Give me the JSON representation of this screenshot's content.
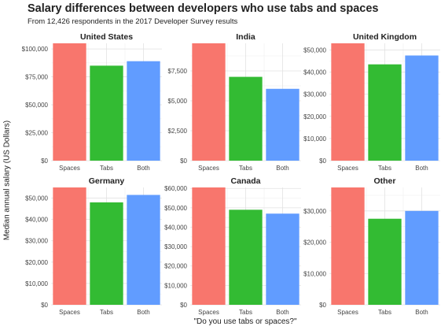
{
  "title": "Salary differences between developers who use tabs and spaces",
  "subtitle": "From 12,426 respondents in the 2017 Developer Survey results",
  "chart_data": {
    "type": "bar",
    "ylabel": "Median annual salary (US Dollars)",
    "xlabel": "\"Do you use tabs or spaces?\"",
    "categories": [
      "Spaces",
      "Tabs",
      "Both"
    ],
    "colors": [
      "#f8766d",
      "#33bb33",
      "#619cff"
    ],
    "grid": true,
    "legend": "none",
    "panels": [
      {
        "title": "United States",
        "values": [
          105000,
          85000,
          89000
        ],
        "ylim": [
          0,
          105000
        ],
        "yticks": [
          0,
          25000,
          50000,
          75000,
          100000
        ],
        "yticklabels": [
          "$0",
          "$25,000",
          "$50,000",
          "$75,000",
          "$100,000"
        ]
      },
      {
        "title": "India",
        "values": [
          9800,
          7000,
          6000
        ],
        "ylim": [
          0,
          9800
        ],
        "yticks": [
          0,
          2500,
          5000,
          7500
        ],
        "yticklabels": [
          "$0",
          "$2,500",
          "$5,000",
          "$7,500"
        ]
      },
      {
        "title": "United Kingdom",
        "values": [
          53000,
          43500,
          47500
        ],
        "ylim": [
          0,
          53000
        ],
        "yticks": [
          0,
          10000,
          20000,
          30000,
          40000,
          50000
        ],
        "yticklabels": [
          "$0",
          "$10,000",
          "$20,000",
          "$30,000",
          "$40,000",
          "$50,000"
        ]
      },
      {
        "title": "Germany",
        "values": [
          55000,
          48000,
          51500
        ],
        "ylim": [
          0,
          55000
        ],
        "yticks": [
          0,
          10000,
          20000,
          30000,
          40000,
          50000
        ],
        "yticklabels": [
          "$0",
          "$10,000",
          "$20,000",
          "$30,000",
          "$40,000",
          "$50,000"
        ]
      },
      {
        "title": "Canada",
        "values": [
          60500,
          49000,
          47000
        ],
        "ylim": [
          0,
          60500
        ],
        "yticks": [
          0,
          10000,
          20000,
          30000,
          40000,
          50000,
          60000
        ],
        "yticklabels": [
          "$0",
          "$10,000",
          "$20,000",
          "$30,000",
          "$40,000",
          "$50,000",
          "$60,000"
        ]
      },
      {
        "title": "Other",
        "values": [
          37500,
          27500,
          30000
        ],
        "ylim": [
          0,
          37500
        ],
        "yticks": [
          0,
          10000,
          20000,
          30000
        ],
        "yticklabels": [
          "$0",
          "$10,000",
          "$20,000",
          "$30,000"
        ]
      }
    ]
  }
}
